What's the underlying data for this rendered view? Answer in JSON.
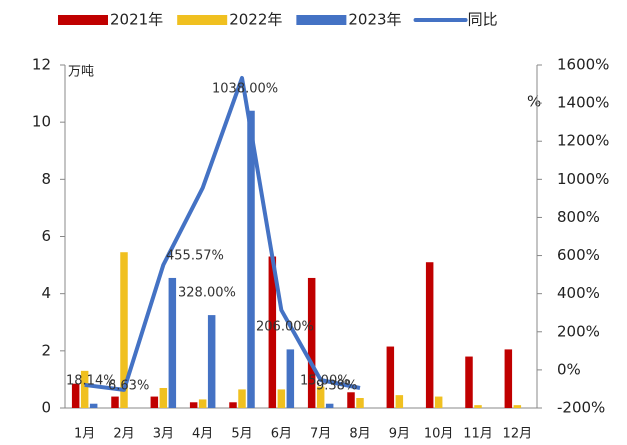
{
  "chart_data": {
    "type": "bar-line",
    "categories": [
      "1月",
      "2月",
      "3月",
      "4月",
      "5月",
      "6月",
      "7月",
      "8月",
      "9月",
      "10月",
      "11月",
      "12月"
    ],
    "series": [
      {
        "name": "2021年",
        "type": "bar",
        "color": "#c00000",
        "values": [
          0.85,
          0.4,
          0.4,
          0.2,
          0.2,
          5.3,
          4.55,
          0.55,
          2.15,
          5.1,
          1.8,
          2.05
        ]
      },
      {
        "name": "2022年",
        "type": "bar",
        "color": "#f0c020",
        "values": [
          1.3,
          5.45,
          0.7,
          0.3,
          0.65,
          0.65,
          0.75,
          0.35,
          0.45,
          0.4,
          0.1,
          0.1
        ]
      },
      {
        "name": "2023年",
        "type": "bar",
        "color": "#4472c4",
        "values": [
          0.15,
          null,
          4.55,
          3.25,
          10.4,
          2.05,
          0.15,
          null,
          null,
          null,
          null,
          null
        ]
      },
      {
        "name": "同比",
        "type": "line",
        "axis": "y2",
        "color": "#4472c4",
        "values": [
          -79,
          -105,
          551,
          955,
          1532,
          314,
          -53,
          -95,
          null,
          null,
          null,
          null
        ]
      }
    ],
    "annotations": [
      "18.14%",
      "6.63%",
      "455.57%",
      "328.00%",
      "1038.00%",
      "206.00%",
      "15.00%",
      "9.38%"
    ],
    "y_unit": "万吨",
    "y2_unit": "%",
    "ylim": [
      0,
      12
    ],
    "yticks": [
      0,
      2,
      4,
      6,
      8,
      10,
      12
    ],
    "y2lim": [
      -200,
      1600
    ],
    "y2ticks": [
      {
        "value": -200,
        "label": "-200%"
      },
      {
        "value": 0,
        "label": "0%"
      },
      {
        "value": 200,
        "label": "200%"
      },
      {
        "value": 400,
        "label": "400%"
      },
      {
        "value": 600,
        "label": "600%"
      },
      {
        "value": 800,
        "label": "800%"
      },
      {
        "value": 1000,
        "label": "1000%"
      },
      {
        "value": 1200,
        "label": "1200%"
      },
      {
        "value": 1400,
        "label": "1400%"
      },
      {
        "value": 1600,
        "label": "1600%"
      }
    ]
  }
}
